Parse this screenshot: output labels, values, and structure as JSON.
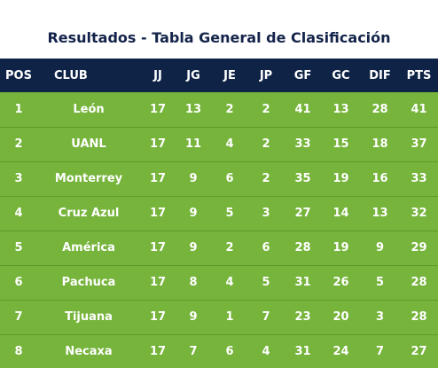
{
  "title": "Resultados - Tabla General de Clasificación",
  "headers": [
    "POS",
    "CLUB",
    "JJ",
    "JG",
    "JE",
    "JP",
    "GF",
    "GC",
    "DIF",
    "PTS"
  ],
  "rows": [
    {
      "pos": "1",
      "club": "León",
      "jj": "17",
      "jg": "13",
      "je": "2",
      "jp": "2",
      "gf": "41",
      "gc": "13",
      "dif": "28",
      "pts": "41"
    },
    {
      "pos": "2",
      "club": "UANL",
      "jj": "17",
      "jg": "11",
      "je": "4",
      "jp": "2",
      "gf": "33",
      "gc": "15",
      "dif": "18",
      "pts": "37"
    },
    {
      "pos": "3",
      "club": "Monterrey",
      "jj": "17",
      "jg": "9",
      "je": "6",
      "jp": "2",
      "gf": "35",
      "gc": "19",
      "dif": "16",
      "pts": "33"
    },
    {
      "pos": "4",
      "club": "Cruz Azul",
      "jj": "17",
      "jg": "9",
      "je": "5",
      "jp": "3",
      "gf": "27",
      "gc": "14",
      "dif": "13",
      "pts": "32"
    },
    {
      "pos": "5",
      "club": "América",
      "jj": "17",
      "jg": "9",
      "je": "2",
      "jp": "6",
      "gf": "28",
      "gc": "19",
      "dif": "9",
      "pts": "29"
    },
    {
      "pos": "6",
      "club": "Pachuca",
      "jj": "17",
      "jg": "8",
      "je": "4",
      "jp": "5",
      "gf": "31",
      "gc": "26",
      "dif": "5",
      "pts": "28"
    },
    {
      "pos": "7",
      "club": "Tijuana",
      "jj": "17",
      "jg": "9",
      "je": "1",
      "jp": "7",
      "gf": "23",
      "gc": "20",
      "dif": "3",
      "pts": "28"
    },
    {
      "pos": "8",
      "club": "Necaxa",
      "jj": "17",
      "jg": "7",
      "je": "6",
      "jp": "4",
      "gf": "31",
      "gc": "24",
      "dif": "7",
      "pts": "27"
    }
  ],
  "colors": {
    "header_bg": "#0f2347",
    "row_bg": "#76b43b",
    "title_color": "#14234a"
  }
}
